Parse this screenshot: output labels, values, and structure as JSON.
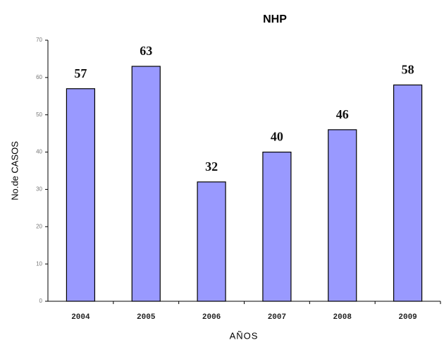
{
  "chart_data": {
    "type": "bar",
    "title": "NHP",
    "x_label": "AÑOS",
    "y_label": "No.de CASOS",
    "categories": [
      "2004",
      "2005",
      "2006",
      "2007",
      "2008",
      "2009"
    ],
    "values": [
      57,
      63,
      32,
      40,
      46,
      58
    ],
    "color": "#9999ff",
    "ylim": [
      0,
      70
    ],
    "yticks": [
      0,
      10,
      20,
      30,
      40,
      50,
      60,
      70
    ],
    "grid": false
  }
}
